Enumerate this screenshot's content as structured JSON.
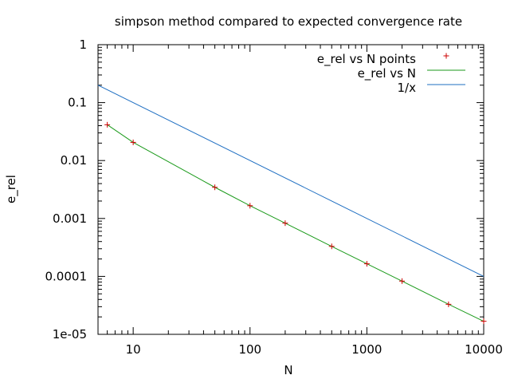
{
  "chart_data": {
    "type": "line",
    "title": "simpson method compared to expected convergence rate",
    "xlabel": "N",
    "ylabel": "e_rel",
    "xscale": "log",
    "yscale": "log",
    "xlim": [
      5,
      10000
    ],
    "ylim": [
      1e-05,
      1
    ],
    "x_ticks": [
      {
        "value": 10,
        "label": "10"
      },
      {
        "value": 100,
        "label": "100"
      },
      {
        "value": 1000,
        "label": "1000"
      },
      {
        "value": 10000,
        "label": "10000"
      }
    ],
    "y_ticks": [
      {
        "value": 1,
        "label": "1"
      },
      {
        "value": 0.1,
        "label": "0.1"
      },
      {
        "value": 0.01,
        "label": "0.01"
      },
      {
        "value": 0.001,
        "label": "0.001"
      },
      {
        "value": 0.0001,
        "label": "0.0001"
      },
      {
        "value": 1e-05,
        "label": "1e-05"
      }
    ],
    "grid": false,
    "legend_position": "top-right",
    "series": [
      {
        "name": "e_rel vs N points",
        "kind": "points",
        "marker": "plus",
        "color": "#cc0000",
        "x": [
          6,
          10,
          50,
          100,
          200,
          500,
          1000,
          2000,
          5000,
          10000
        ],
        "y": [
          0.0415,
          0.0206,
          0.00345,
          0.00166,
          0.00083,
          0.00033,
          0.000165,
          8.3e-05,
          3.3e-05,
          1.68e-05
        ]
      },
      {
        "name": "e_rel vs N",
        "kind": "line",
        "color": "#1a9a1a",
        "x": [
          6,
          10,
          50,
          100,
          200,
          500,
          1000,
          2000,
          5000,
          10000
        ],
        "y": [
          0.0415,
          0.0206,
          0.00345,
          0.00166,
          0.00083,
          0.00033,
          0.000165,
          8.3e-05,
          3.3e-05,
          1.68e-05
        ]
      },
      {
        "name": "1/x",
        "kind": "line",
        "color": "#1f6fc2",
        "x": [
          5,
          10000
        ],
        "y": [
          0.2,
          0.0001
        ]
      }
    ]
  }
}
